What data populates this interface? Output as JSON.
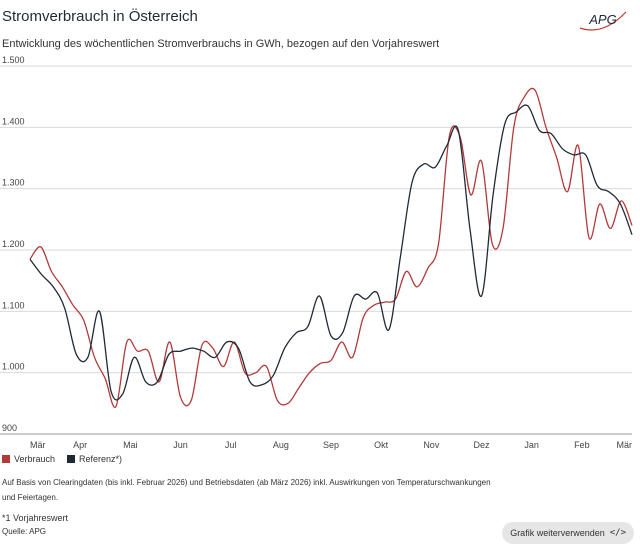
{
  "header": {
    "title": "Stromverbrauch in Österreich",
    "subtitle": "Entwicklung des wöchentlichen Stromverbrauchs in GWh, bezogen auf den Vorjahreswert",
    "logo_text": "APG",
    "logo_color": "#c0392b"
  },
  "chart_data": {
    "type": "line",
    "x_labels": [
      "Mär",
      "Apr",
      "Mai",
      "Jun",
      "Jul",
      "Aug",
      "Sep",
      "Okt",
      "Nov",
      "Dez",
      "Jan",
      "Feb",
      "Mär"
    ],
    "y_ticks": [
      "900",
      "1.000",
      "1.100",
      "1.200",
      "1.300",
      "1.400",
      "1.500"
    ],
    "y_tick_values": [
      900,
      1000,
      1100,
      1200,
      1300,
      1400,
      1500
    ],
    "ylim": [
      900,
      1500
    ],
    "x_range": [
      0,
      52
    ],
    "grid": true,
    "legend_position": "bottom-left",
    "series": [
      {
        "name": "Verbrauch",
        "color": "#b33a3a",
        "values": [
          1185,
          1205,
          1165,
          1140,
          1110,
          1085,
          1025,
          990,
          945,
          1050,
          1035,
          1035,
          985,
          1050,
          960,
          955,
          1045,
          1040,
          1010,
          1050,
          1000,
          1000,
          1010,
          955,
          950,
          975,
          1000,
          1015,
          1020,
          1050,
          1025,
          1090,
          1110,
          1115,
          1120,
          1165,
          1140,
          1170,
          1210,
          1385,
          1385,
          1290,
          1345,
          1210,
          1235,
          1400,
          1450,
          1460,
          1400,
          1350,
          1295,
          1370,
          1220,
          1275,
          1235,
          1280,
          1240
        ]
      },
      {
        "name": "Referenz*)",
        "color": "#1f2a36",
        "values": [
          1185,
          1160,
          1140,
          1105,
          1030,
          1025,
          1100,
          970,
          965,
          1025,
          985,
          985,
          1030,
          1035,
          1040,
          1035,
          1025,
          1050,
          1040,
          985,
          980,
          995,
          1040,
          1065,
          1075,
          1125,
          1060,
          1065,
          1125,
          1120,
          1130,
          1070,
          1190,
          1310,
          1340,
          1335,
          1370,
          1395,
          1235,
          1125,
          1290,
          1405,
          1425,
          1435,
          1395,
          1390,
          1365,
          1355,
          1355,
          1305,
          1295,
          1275,
          1225
        ]
      }
    ]
  },
  "footer": {
    "note_line1": "Auf Basis von Clearingdaten (bis inkl. Februar 2026) und Betriebsdaten (ab März 2026) inkl. Auswirkungen von Temperaturschwankungen",
    "note_line2": "und Feiertagen.",
    "footnote": "*1 Vorjahreswert",
    "source": "Quelle: APG",
    "reuse_label": "Grafik weiterverwenden",
    "reuse_icon": "</>"
  }
}
